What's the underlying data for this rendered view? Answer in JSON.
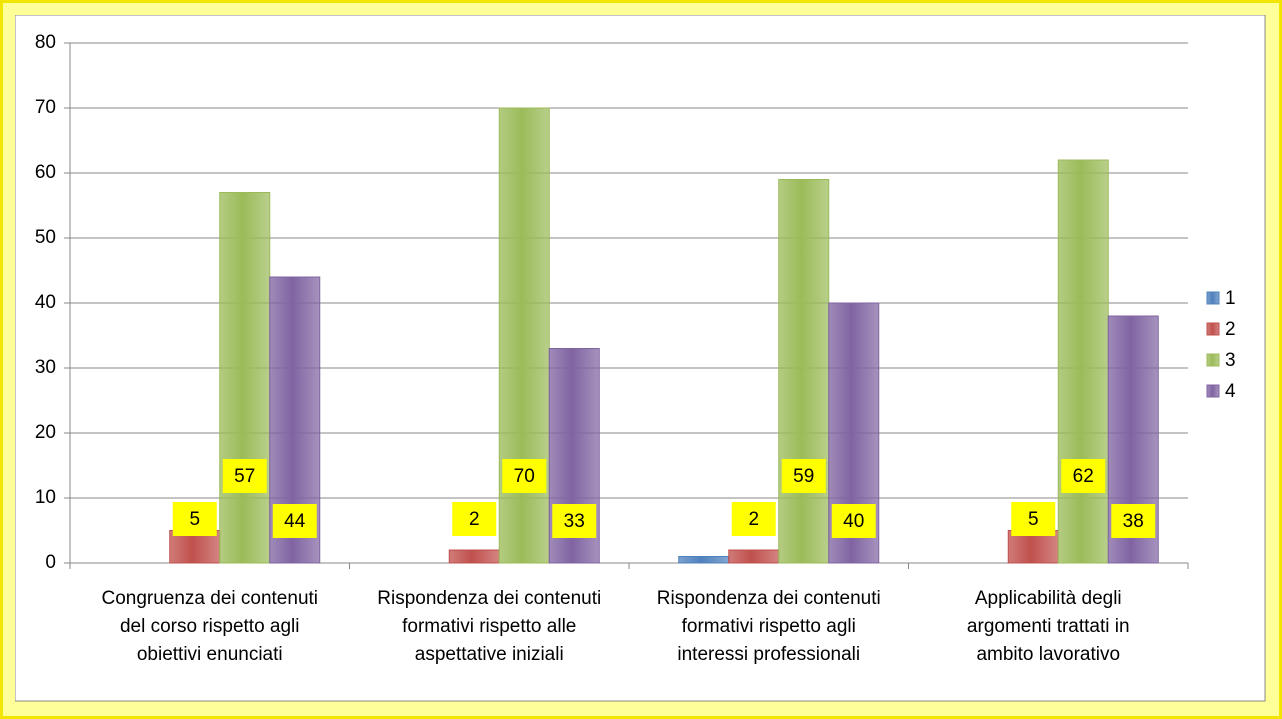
{
  "chart_data": {
    "type": "bar",
    "categories": [
      "Congruenza dei contenuti del corso rispetto agli obiettivi enunciati",
      "Rispondenza dei contenuti formativi rispetto alle aspettative iniziali",
      "Rispondenza dei contenuti formativi rispetto agli interessi professionali",
      "Applicabilità degli argomenti trattati in ambito lavorativo"
    ],
    "series": [
      {
        "name": "1",
        "color": "#4f81bd",
        "values": [
          0,
          0,
          1,
          0
        ],
        "show_labels": false
      },
      {
        "name": "2",
        "color": "#c0504d",
        "values": [
          5,
          2,
          2,
          5
        ],
        "show_labels": true
      },
      {
        "name": "3",
        "color": "#9bbb59",
        "values": [
          57,
          70,
          59,
          62
        ],
        "show_labels": true
      },
      {
        "name": "4",
        "color": "#8064a2",
        "values": [
          44,
          33,
          40,
          38
        ],
        "show_labels": true
      }
    ],
    "ylim": [
      0,
      80
    ],
    "yticks": [
      0,
      10,
      20,
      30,
      40,
      50,
      60,
      70,
      80
    ],
    "grid": true,
    "legend": "right"
  }
}
